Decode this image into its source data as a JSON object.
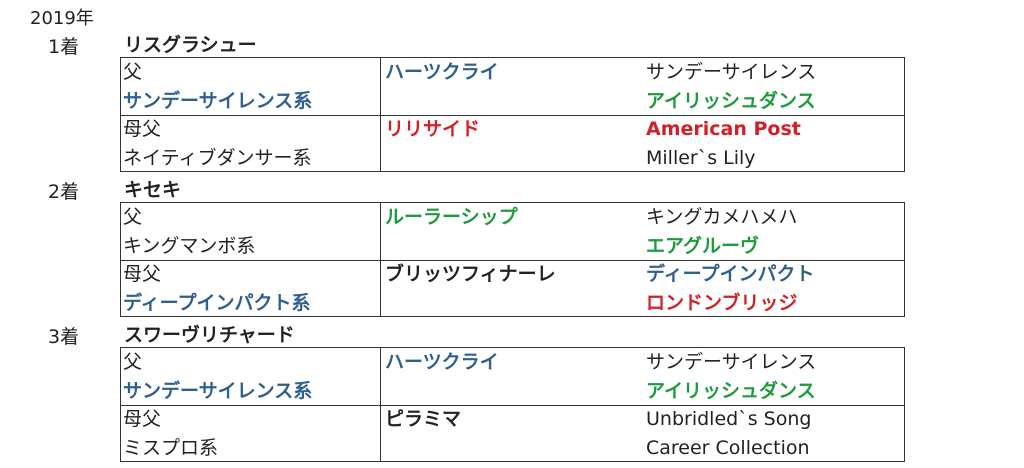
{
  "year": "2019年",
  "colors": {
    "blue": "#2f5f8c",
    "green": "#1f9a3c",
    "red": "#d31f26",
    "black": "#222222"
  },
  "races": [
    {
      "rank": "1着",
      "horse": "リスグラシュー",
      "sire": {
        "label": "父",
        "line": "サンデーサイレンス系",
        "line_color": "blue",
        "name": "ハーツクライ",
        "name_color": "blue",
        "p1": "サンデーサイレンス",
        "p1_color": "black",
        "p2": "アイリッシュダンス",
        "p2_color": "green"
      },
      "dam_sire": {
        "label": "母父",
        "line": "ネイティブダンサー系",
        "line_color": "black",
        "name": "リリサイド",
        "name_color": "red",
        "p1": "American Post",
        "p1_color": "red",
        "p2": "Miller`s Lily",
        "p2_color": "black"
      }
    },
    {
      "rank": "2着",
      "horse": "キセキ",
      "sire": {
        "label": "父",
        "line": "キングマンボ系",
        "line_color": "black",
        "name": "ルーラーシップ",
        "name_color": "green",
        "p1": "キングカメハメハ",
        "p1_color": "black",
        "p2": "エアグルーヴ",
        "p2_color": "green"
      },
      "dam_sire": {
        "label": "母父",
        "line": "ディープインパクト系",
        "line_color": "blue",
        "name": "ブリッツフィナーレ",
        "name_color": "black",
        "p1": "ディープインパクト",
        "p1_color": "blue",
        "p2": "ロンドンブリッジ",
        "p2_color": "red"
      }
    },
    {
      "rank": "3着",
      "horse": "スワーヴリチャード",
      "sire": {
        "label": "父",
        "line": "サンデーサイレンス系",
        "line_color": "blue",
        "name": "ハーツクライ",
        "name_color": "blue",
        "p1": "サンデーサイレンス",
        "p1_color": "black",
        "p2": "アイリッシュダンス",
        "p2_color": "green"
      },
      "dam_sire": {
        "label": "母父",
        "line": "ミスプロ系",
        "line_color": "black",
        "name": "ピラミマ",
        "name_color": "black",
        "p1": "Unbridled`s Song",
        "p1_color": "black",
        "p2": "Career Collection",
        "p2_color": "black"
      }
    }
  ]
}
